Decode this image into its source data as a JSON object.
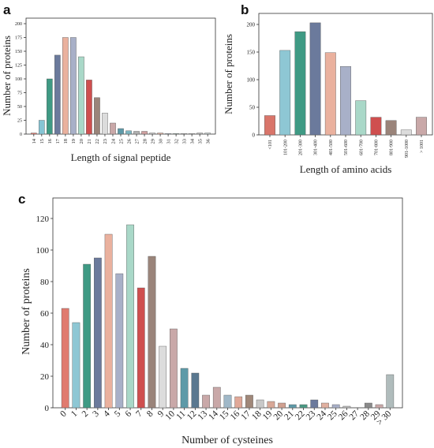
{
  "figure": {
    "panels": [
      {
        "id": "a",
        "letter": "a"
      },
      {
        "id": "b",
        "letter": "b"
      },
      {
        "id": "c",
        "letter": "c"
      }
    ]
  },
  "chart_data": [
    {
      "panel": "a",
      "type": "bar",
      "title": "",
      "xlabel": "Length of signal peptide",
      "ylabel": "Number of proteins",
      "ylim": [
        0,
        210
      ],
      "yticks": [
        0,
        25,
        50,
        75,
        100,
        125,
        150,
        175,
        200
      ],
      "grid": false,
      "categories": [
        "14",
        "15",
        "16",
        "17",
        "18",
        "19",
        "20",
        "21",
        "22",
        "23",
        "24",
        "25",
        "26",
        "27",
        "28",
        "29",
        "30",
        "31",
        "32",
        "33",
        "34",
        "35",
        "36"
      ],
      "values": [
        2,
        25,
        100,
        143,
        175,
        175,
        140,
        98,
        66,
        38,
        20,
        10,
        6,
        5,
        5,
        2,
        2,
        1,
        1,
        1,
        1,
        2,
        2
      ],
      "colors": [
        "#e07b6f",
        "#86c5d4",
        "#3f9a84",
        "#6b7a9c",
        "#eab19e",
        "#a8b0c8",
        "#a9d8c8",
        "#cf4f4f",
        "#9a847a",
        "#dcdcdc",
        "#c9a8a8",
        "#5e9aa8",
        "#7cb5c0",
        "#b0b0b0",
        "#d0a0a0",
        "#c0c0c0",
        "#e0b0a0",
        "#b0c0d0",
        "#a0c0b0",
        "#c8c8c8",
        "#d0d0d0",
        "#b8b8b8",
        "#c0c8c8"
      ]
    },
    {
      "panel": "b",
      "type": "bar",
      "title": "",
      "xlabel": "Length of amino acids",
      "ylabel": "Number of proteins",
      "ylim": [
        0,
        220
      ],
      "yticks": [
        0,
        50,
        100,
        150,
        200
      ],
      "grid": false,
      "categories": [
        "<101",
        "101-200",
        "201-300",
        "301-400",
        "401-500",
        "501-600",
        "601-700",
        "701-800",
        "801-900",
        "901-1000",
        "> 1001"
      ],
      "values": [
        35,
        153,
        187,
        203,
        149,
        124,
        62,
        32,
        26,
        9,
        32
      ],
      "colors": [
        "#d9756a",
        "#8ec7d4",
        "#3f9a84",
        "#6b7a9c",
        "#eab19e",
        "#a8b0c8",
        "#a9d8c8",
        "#cf4f4f",
        "#9a847a",
        "#dcdcdc",
        "#c9a8a8"
      ]
    },
    {
      "panel": "c",
      "type": "bar",
      "title": "",
      "xlabel": "Number of cysteines",
      "ylabel": "Number of proteins",
      "ylim": [
        0,
        133
      ],
      "yticks": [
        0,
        20,
        40,
        60,
        80,
        100,
        120
      ],
      "grid": false,
      "categories": [
        "0",
        "1",
        "2",
        "3",
        "4",
        "5",
        "6",
        "7",
        "8",
        "9",
        "10",
        "11",
        "12",
        "13",
        "14",
        "15",
        "16",
        "17",
        "18",
        "19",
        "20",
        "21",
        "22",
        "23",
        "24",
        "25",
        "26",
        "27",
        "28",
        "29",
        "> 30"
      ],
      "values": [
        63,
        54,
        91,
        95,
        110,
        85,
        116,
        76,
        96,
        39,
        50,
        25,
        22,
        8,
        13,
        8,
        7,
        8,
        5,
        4,
        3,
        2,
        2,
        5,
        3,
        2,
        1,
        0,
        3,
        2,
        21
      ],
      "colors": [
        "#e07b6f",
        "#8ec7d4",
        "#3f9a84",
        "#6b7a9c",
        "#eab19e",
        "#a8b0c8",
        "#a9d8c8",
        "#cf4f4f",
        "#9a847a",
        "#dcdcdc",
        "#c9a8a8",
        "#5e9aa8",
        "#5a7890",
        "#c9a8a8",
        "#c9a8a8",
        "#a0b8c8",
        "#e0a898",
        "#a0887a",
        "#c8c8c8",
        "#d8a898",
        "#d0a090",
        "#5e9aa8",
        "#4a9a84",
        "#6b7a9c",
        "#e0b0a0",
        "#a8b0c8",
        "#c0c0c0",
        "#c0c0c0",
        "#8a8a8a",
        "#c9a8a8",
        "#b0bcbc"
      ]
    }
  ]
}
